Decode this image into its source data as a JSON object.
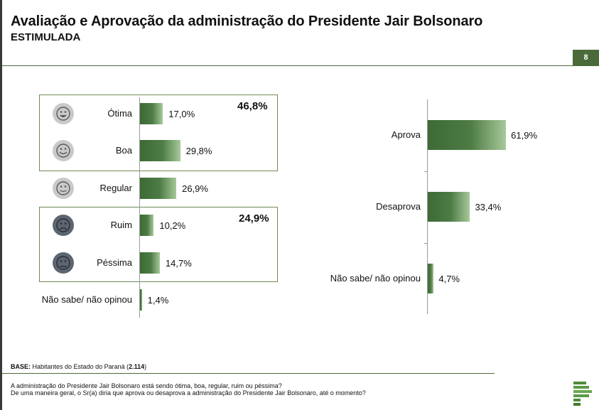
{
  "header": {
    "title": "Avaliação e Aprovação da administração do Presidente Jair Bolsonaro",
    "subtitle": "ESTIMULADA",
    "page_number": "8"
  },
  "left_panel": {
    "positive_total": "46,8%",
    "negative_total": "24,9%"
  },
  "chart_data": [
    {
      "type": "bar",
      "orientation": "horizontal",
      "categories": [
        "Ótima",
        "Boa",
        "Regular",
        "Ruim",
        "Péssima",
        "Não sabe/ não opinou"
      ],
      "values": [
        17.0,
        29.8,
        26.9,
        10.2,
        14.7,
        1.4
      ],
      "value_labels": [
        "17,0%",
        "29,8%",
        "26,9%",
        "10,2%",
        "14,7%",
        "1,4%"
      ],
      "icons": [
        "very-happy-face-icon",
        "happy-face-icon",
        "neutral-face-icon",
        "sad-face-icon",
        "very-sad-face-icon",
        null
      ],
      "group_totals": [
        {
          "label": "46,8%",
          "categories": [
            "Ótima",
            "Boa"
          ]
        },
        {
          "label": "24,9%",
          "categories": [
            "Ruim",
            "Péssima"
          ]
        }
      ],
      "colors": {
        "bar_start": "#3d6a35",
        "bar_end": "#a7c89a",
        "group_border": "#6e8a5a"
      }
    },
    {
      "type": "bar",
      "orientation": "horizontal",
      "categories": [
        "Aprova",
        "Desaprova",
        "Não sabe/ não opinou"
      ],
      "values": [
        61.9,
        33.4,
        4.7
      ],
      "value_labels": [
        "61,9%",
        "33,4%",
        "4,7%"
      ],
      "colors": {
        "bar_start": "#3d6a35",
        "bar_end": "#a7c89a"
      }
    }
  ],
  "footer": {
    "base_label": "BASE:",
    "base_text": " Habitantes do Estado do Paraná (",
    "base_count": "2.114",
    "base_close": ")",
    "question_1": "A administração do Presidente Jair Bolsonaro está sendo ótima, boa, regular, ruim ou péssima?",
    "question_2": "De uma maneira geral, o Sr(a) diria que aprova ou desaprova a administração do Presidente Jair Bolsonaro, até o momento?"
  },
  "colors": {
    "accent": "#4a6a3a"
  }
}
